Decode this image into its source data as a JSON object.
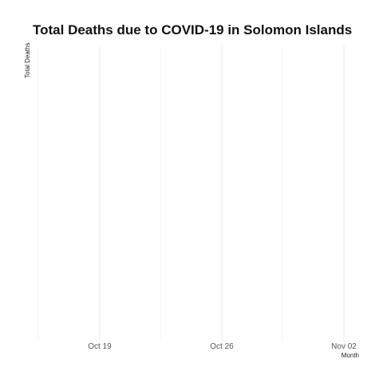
{
  "chart_data": {
    "type": "line",
    "title": "Total Deaths due to COVID-19 in Solomon Islands",
    "xlabel": "Month",
    "ylabel": "Total Deaths",
    "x_ticks": [
      "Oct 19",
      "Oct 26",
      "Nov 02"
    ],
    "grid": true,
    "legend": "none",
    "series": [
      {
        "x": [],
        "values": []
      }
    ]
  }
}
